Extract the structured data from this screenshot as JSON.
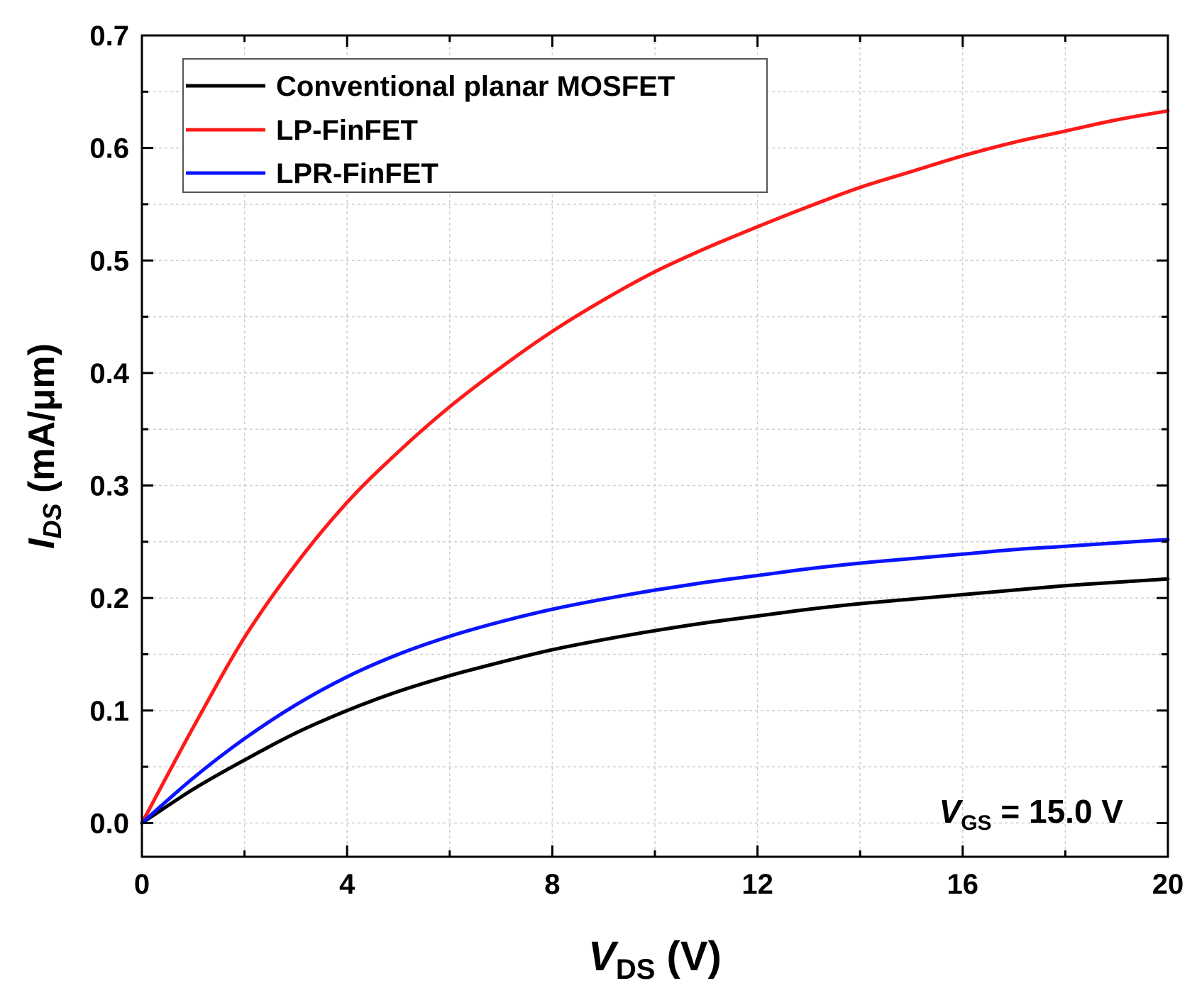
{
  "chart_data": {
    "type": "line",
    "xlabel": {
      "main": "V",
      "sub": "DS",
      "unit": " (V)"
    },
    "ylabel": {
      "main": "I",
      "sub": "DS",
      "unit": " (mA/μm)"
    },
    "xlim": [
      0,
      20
    ],
    "ylim": [
      -0.03,
      0.7
    ],
    "xticks": [
      0,
      4,
      8,
      12,
      16,
      20
    ],
    "xtick_labels": [
      "0",
      "4",
      "8",
      "12",
      "16",
      "20"
    ],
    "yticks": [
      0.0,
      0.1,
      0.2,
      0.3,
      0.4,
      0.5,
      0.6,
      0.7
    ],
    "ytick_labels": [
      "0.0",
      "0.1",
      "0.2",
      "0.3",
      "0.4",
      "0.5",
      "0.6",
      "0.7"
    ],
    "grid": true,
    "legend_position": "top-left",
    "annotation": {
      "main": "V",
      "sub": "GS",
      "rest": " = 15.0 V"
    },
    "x": [
      0,
      1,
      2,
      3,
      4,
      5,
      6,
      7,
      8,
      9,
      10,
      11,
      12,
      13,
      14,
      15,
      16,
      17,
      18,
      19,
      20
    ],
    "series": [
      {
        "name": "Conventional planar MOSFET",
        "color": "#000000",
        "values": [
          0.0,
          0.03,
          0.056,
          0.08,
          0.1,
          0.117,
          0.131,
          0.143,
          0.154,
          0.163,
          0.171,
          0.178,
          0.184,
          0.19,
          0.195,
          0.199,
          0.203,
          0.207,
          0.211,
          0.214,
          0.217
        ]
      },
      {
        "name": "LP-FinFET",
        "color": "#ff1a1a",
        "values": [
          0.0,
          0.085,
          0.165,
          0.23,
          0.285,
          0.33,
          0.37,
          0.405,
          0.437,
          0.465,
          0.49,
          0.511,
          0.53,
          0.548,
          0.565,
          0.579,
          0.593,
          0.605,
          0.615,
          0.625,
          0.633
        ]
      },
      {
        "name": "LPR-FinFET",
        "color": "#0a14ff",
        "values": [
          0.0,
          0.04,
          0.075,
          0.105,
          0.13,
          0.15,
          0.166,
          0.179,
          0.19,
          0.199,
          0.207,
          0.214,
          0.22,
          0.226,
          0.231,
          0.235,
          0.239,
          0.243,
          0.246,
          0.249,
          0.252
        ]
      }
    ]
  }
}
